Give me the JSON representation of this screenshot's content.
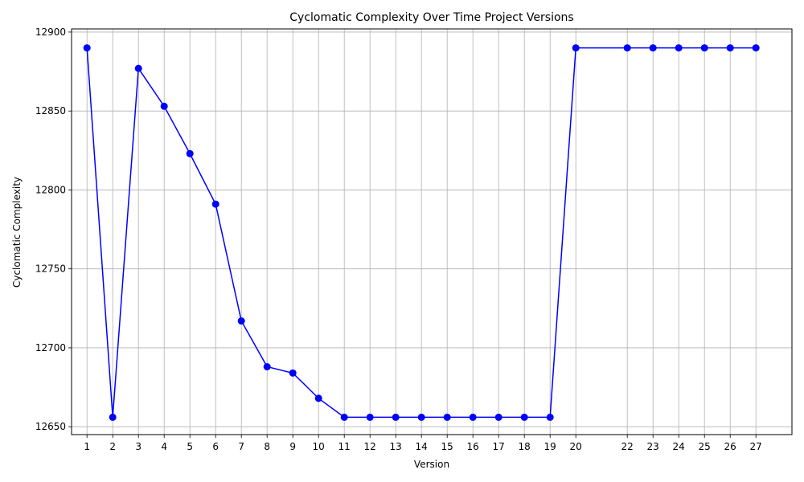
{
  "chart_data": {
    "type": "line",
    "title": "Cyclomatic Complexity Over Time Project Versions",
    "xlabel": "Version",
    "ylabel": "Cyclomatic Complexity",
    "x": [
      1,
      2,
      3,
      4,
      5,
      6,
      7,
      8,
      9,
      10,
      11,
      12,
      13,
      14,
      15,
      16,
      17,
      18,
      19,
      20,
      22,
      23,
      24,
      25,
      26,
      27
    ],
    "y": [
      12890,
      12656,
      12877,
      12853,
      12823,
      12791,
      12717,
      12688,
      12684,
      12668,
      12656,
      12656,
      12656,
      12656,
      12656,
      12656,
      12656,
      12656,
      12656,
      12890,
      12890,
      12890,
      12890,
      12890,
      12890,
      12890
    ],
    "x_ticks": [
      "1",
      "2",
      "3",
      "4",
      "5",
      "6",
      "7",
      "8",
      "9",
      "10",
      "11",
      "12",
      "13",
      "14",
      "15",
      "16",
      "17",
      "18",
      "19",
      "20",
      "22",
      "23",
      "24",
      "25",
      "26",
      "27"
    ],
    "y_ticks": [
      12650,
      12700,
      12750,
      12800,
      12850,
      12900
    ],
    "xlim": [
      0.4,
      28.4
    ],
    "ylim": [
      12645,
      12902
    ],
    "grid": true,
    "line_color": "#0000ff",
    "marker": "circle"
  }
}
